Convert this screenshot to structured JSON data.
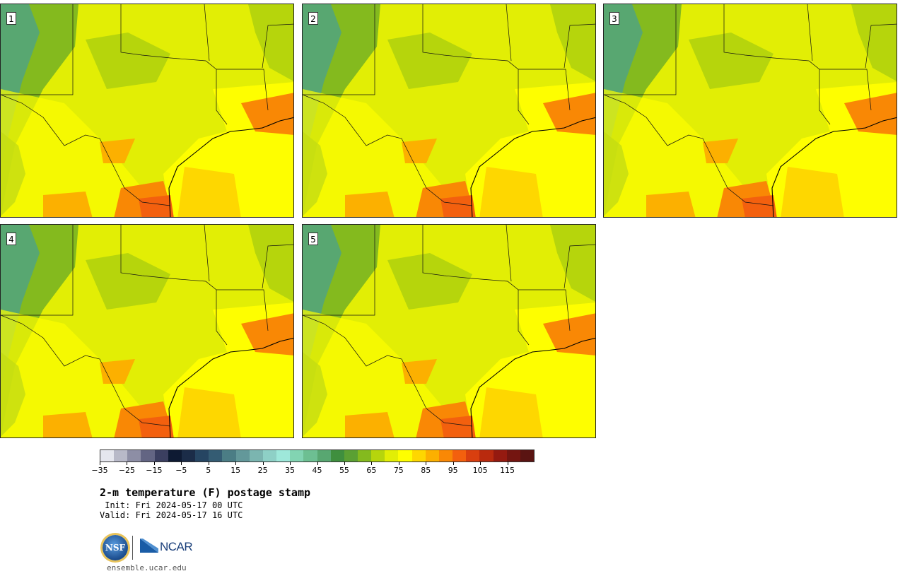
{
  "panels": [
    {
      "label": "1"
    },
    {
      "label": "2"
    },
    {
      "label": "3"
    },
    {
      "label": "4"
    },
    {
      "label": "5"
    }
  ],
  "colorbar": {
    "colors": [
      "#e5e6ee",
      "#b8b9c8",
      "#8d8ea5",
      "#636583",
      "#3b3f60",
      "#0e1a33",
      "#1b2c48",
      "#264562",
      "#345c73",
      "#4b7d85",
      "#63989a",
      "#7bb5b0",
      "#8ed0c6",
      "#9ee8da",
      "#82d4b2",
      "#6dbf92",
      "#58a771",
      "#3f8f3e",
      "#5ba033",
      "#84ba1e",
      "#b6d50c",
      "#e2ee05",
      "#fefe00",
      "#fed700",
      "#fcb000",
      "#f98805",
      "#f3600e",
      "#d93f0f",
      "#b92a0e",
      "#951a10",
      "#741510",
      "#5a1412"
    ],
    "ticks": [
      "−35",
      "−25",
      "−15",
      "−5",
      "5",
      "15",
      "25",
      "35",
      "45",
      "55",
      "65",
      "75",
      "85",
      "95",
      "105",
      "115"
    ]
  },
  "title": "2-m temperature (F) postage stamp",
  "init_text": " Init: Fri 2024-05-17 00 UTC",
  "valid_text": "Valid: Fri 2024-05-17 16 UTC",
  "logos": {
    "nsf": "NSF",
    "ncar": "NCAR"
  },
  "site": "ensemble.ucar.edu"
}
